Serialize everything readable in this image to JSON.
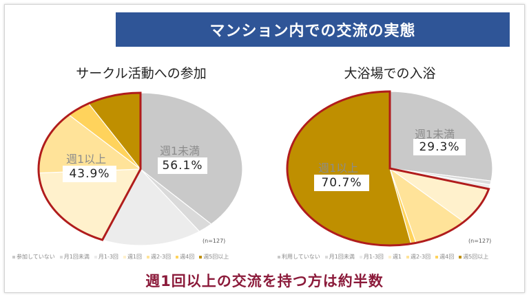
{
  "header": {
    "title": "マンション内での交流の実態"
  },
  "footer": {
    "conclusion": "週1回以上の交流を持つ方は約半数"
  },
  "colors": {
    "banner": "#2f5597",
    "highlight": "#b01c1c",
    "conclusion": "#8b1a3a"
  },
  "chart_data": [
    {
      "type": "pie",
      "title": "サークル活動への参加",
      "note": "(n=127)",
      "categories": [
        "参加していない",
        "月1回未満",
        "月1-3回",
        "週1回",
        "週2-3回",
        "週4回",
        "週5回以上"
      ],
      "values": [
        37.8,
        2.4,
        15.9,
        18.1,
        13.4,
        3.9,
        8.5
      ],
      "colors": [
        "#c9c9c9",
        "#dadada",
        "#ececec",
        "#fff1cc",
        "#ffe399",
        "#ffd35c",
        "#bf8f00"
      ],
      "groups": [
        {
          "label": "週1未満",
          "value_label": "56.1%",
          "value": 56.1
        },
        {
          "label": "週1以上",
          "value_label": "43.9%",
          "value": 43.9,
          "highlighted": true
        }
      ]
    },
    {
      "type": "pie",
      "title": "大浴場での入浴",
      "note": "(n=127)",
      "categories": [
        "利用していない",
        "月1回未満",
        "月1-3回",
        "週1",
        "週2-3回",
        "週4回",
        "週5回以上"
      ],
      "values": [
        27.6,
        0.8,
        0.9,
        7.9,
        8.7,
        0.8,
        53.3
      ],
      "colors": [
        "#c9c9c9",
        "#dadada",
        "#ececec",
        "#fff1cc",
        "#ffe399",
        "#ffd35c",
        "#bf8f00"
      ],
      "groups": [
        {
          "label": "週1未満",
          "value_label": "29.3%",
          "value": 29.3
        },
        {
          "label": "週1以上",
          "value_label": "70.7%",
          "value": 70.7,
          "highlighted": true
        }
      ]
    }
  ]
}
